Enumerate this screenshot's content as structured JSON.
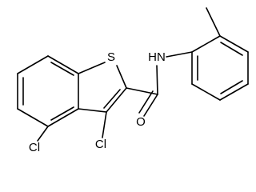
{
  "atoms": [
    {
      "label": "S"
    },
    {
      "label": "HN"
    },
    {
      "label": "O"
    },
    {
      "label": "Cl"
    },
    {
      "label": "Cl"
    }
  ]
}
